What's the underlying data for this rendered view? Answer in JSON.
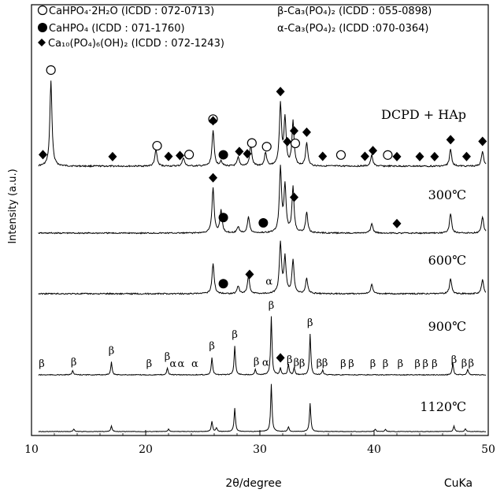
{
  "chart_data": {
    "type": "line",
    "xlabel": "2θ/degree",
    "ylabel": "Intensity (a.u.)",
    "radiation": "CuKa",
    "xlim": [
      10,
      50
    ],
    "xticks": [
      10,
      20,
      30,
      40,
      50
    ],
    "legend": [
      {
        "symbol": "open-circle",
        "text": "CaHPO₄·2H₂O (ICDD : 072-0713)"
      },
      {
        "symbol": "filled-circle",
        "text": "CaHPO₄  (ICDD : 071-1760)"
      },
      {
        "symbol": "filled-diamond",
        "text": "Ca₁₀(PO₄)₆(OH)₂ (ICDD : 072-1243)"
      },
      {
        "symbol": "none",
        "text": "β-Ca₃(PO₄)₂ (ICDD : 055-0898)"
      },
      {
        "symbol": "none",
        "text": "α-Ca₃(PO₄)₂ (ICDD :070-0364)"
      }
    ],
    "series": [
      {
        "name": "DCPD + HAp",
        "peaks": [
          {
            "x": 11.7,
            "h": 1.0
          },
          {
            "x": 20.9,
            "h": 0.2
          },
          {
            "x": 23.3,
            "h": 0.1
          },
          {
            "x": 25.9,
            "h": 0.42
          },
          {
            "x": 26.6,
            "h": 0.06
          },
          {
            "x": 28.1,
            "h": 0.1
          },
          {
            "x": 29.2,
            "h": 0.25
          },
          {
            "x": 30.5,
            "h": 0.16
          },
          {
            "x": 31.8,
            "h": 0.72
          },
          {
            "x": 32.2,
            "h": 0.55
          },
          {
            "x": 32.9,
            "h": 0.52
          },
          {
            "x": 34.1,
            "h": 0.28
          },
          {
            "x": 39.8,
            "h": 0.13
          },
          {
            "x": 46.7,
            "h": 0.2
          },
          {
            "x": 49.5,
            "h": 0.18
          }
        ],
        "markers": [
          {
            "x": 11.7,
            "m": "open-circle"
          },
          {
            "x": 21.0,
            "m": "open-circle"
          },
          {
            "x": 23.8,
            "m": "open-circle"
          },
          {
            "x": 25.9,
            "m": "open-circle"
          },
          {
            "x": 29.3,
            "m": "open-circle"
          },
          {
            "x": 30.6,
            "m": "open-circle"
          },
          {
            "x": 33.1,
            "m": "open-circle"
          },
          {
            "x": 37.1,
            "m": "open-circle"
          },
          {
            "x": 41.2,
            "m": "open-circle"
          },
          {
            "x": 26.8,
            "m": "filled-circle"
          },
          {
            "x": 11.0,
            "m": "filled-diamond"
          },
          {
            "x": 17.1,
            "m": "filled-diamond"
          },
          {
            "x": 22.0,
            "m": "filled-diamond"
          },
          {
            "x": 23.0,
            "m": "filled-diamond"
          },
          {
            "x": 25.9,
            "m": "filled-diamond"
          },
          {
            "x": 28.2,
            "m": "filled-diamond"
          },
          {
            "x": 28.9,
            "m": "filled-diamond"
          },
          {
            "x": 31.8,
            "m": "filled-diamond"
          },
          {
            "x": 32.4,
            "m": "filled-diamond"
          },
          {
            "x": 33.0,
            "m": "filled-diamond"
          },
          {
            "x": 34.1,
            "m": "filled-diamond"
          },
          {
            "x": 35.5,
            "m": "filled-diamond"
          },
          {
            "x": 39.2,
            "m": "filled-diamond"
          },
          {
            "x": 39.9,
            "m": "filled-diamond"
          },
          {
            "x": 42.0,
            "m": "filled-diamond"
          },
          {
            "x": 44.0,
            "m": "filled-diamond"
          },
          {
            "x": 45.3,
            "m": "filled-diamond"
          },
          {
            "x": 46.7,
            "m": "filled-diamond"
          },
          {
            "x": 48.1,
            "m": "filled-diamond"
          },
          {
            "x": 49.5,
            "m": "filled-diamond"
          }
        ]
      },
      {
        "name": "300℃",
        "peaks": [
          {
            "x": 25.9,
            "h": 0.7
          },
          {
            "x": 26.6,
            "h": 0.35
          },
          {
            "x": 28.1,
            "h": 0.1
          },
          {
            "x": 29.0,
            "h": 0.25
          },
          {
            "x": 31.8,
            "h": 1.0
          },
          {
            "x": 32.2,
            "h": 0.72
          },
          {
            "x": 32.9,
            "h": 0.7
          },
          {
            "x": 34.1,
            "h": 0.32
          },
          {
            "x": 39.8,
            "h": 0.15
          },
          {
            "x": 46.7,
            "h": 0.3
          },
          {
            "x": 49.5,
            "h": 0.25
          }
        ],
        "markers": [
          {
            "x": 25.9,
            "m": "filled-diamond"
          },
          {
            "x": 26.8,
            "m": "filled-circle"
          },
          {
            "x": 30.3,
            "m": "filled-circle"
          },
          {
            "x": 33.0,
            "m": "filled-diamond"
          },
          {
            "x": 42.0,
            "m": "filled-diamond"
          }
        ]
      },
      {
        "name": "600℃",
        "peaks": [
          {
            "x": 25.9,
            "h": 0.6
          },
          {
            "x": 28.1,
            "h": 0.15
          },
          {
            "x": 29.0,
            "h": 0.35
          },
          {
            "x": 31.8,
            "h": 1.0
          },
          {
            "x": 32.2,
            "h": 0.7
          },
          {
            "x": 32.9,
            "h": 0.65
          },
          {
            "x": 34.1,
            "h": 0.3
          },
          {
            "x": 39.8,
            "h": 0.18
          },
          {
            "x": 46.7,
            "h": 0.3
          },
          {
            "x": 49.5,
            "h": 0.28
          }
        ],
        "markers": [
          {
            "x": 26.8,
            "m": "filled-circle"
          },
          {
            "x": 29.1,
            "m": "filled-diamond"
          },
          {
            "x": 30.8,
            "m": "alpha"
          }
        ]
      },
      {
        "name": "900℃",
        "peaks": [
          {
            "x": 13.6,
            "h": 0.08
          },
          {
            "x": 17.0,
            "h": 0.22
          },
          {
            "x": 21.9,
            "h": 0.12
          },
          {
            "x": 25.8,
            "h": 0.3
          },
          {
            "x": 27.8,
            "h": 0.5
          },
          {
            "x": 29.6,
            "h": 0.1
          },
          {
            "x": 31.0,
            "h": 1.0
          },
          {
            "x": 31.8,
            "h": 0.12
          },
          {
            "x": 32.5,
            "h": 0.18
          },
          {
            "x": 33.0,
            "h": 0.12
          },
          {
            "x": 34.4,
            "h": 0.7
          },
          {
            "x": 35.5,
            "h": 0.08
          },
          {
            "x": 46.9,
            "h": 0.2
          },
          {
            "x": 48.2,
            "h": 0.1
          }
        ],
        "markers": [
          {
            "x": 10.9,
            "m": "beta"
          },
          {
            "x": 13.7,
            "m": "beta"
          },
          {
            "x": 17.0,
            "m": "beta"
          },
          {
            "x": 20.3,
            "m": "beta"
          },
          {
            "x": 21.9,
            "m": "beta"
          },
          {
            "x": 22.4,
            "m": "alpha"
          },
          {
            "x": 23.1,
            "m": "alpha"
          },
          {
            "x": 24.3,
            "m": "alpha"
          },
          {
            "x": 25.8,
            "m": "beta"
          },
          {
            "x": 27.8,
            "m": "beta"
          },
          {
            "x": 29.7,
            "m": "beta"
          },
          {
            "x": 30.5,
            "m": "alpha"
          },
          {
            "x": 31.0,
            "m": "beta"
          },
          {
            "x": 31.8,
            "m": "filled-diamond"
          },
          {
            "x": 32.6,
            "m": "beta"
          },
          {
            "x": 33.2,
            "m": "beta"
          },
          {
            "x": 33.7,
            "m": "beta"
          },
          {
            "x": 34.4,
            "m": "beta"
          },
          {
            "x": 35.2,
            "m": "beta"
          },
          {
            "x": 35.7,
            "m": "beta"
          },
          {
            "x": 37.3,
            "m": "beta"
          },
          {
            "x": 38.0,
            "m": "beta"
          },
          {
            "x": 39.9,
            "m": "beta"
          },
          {
            "x": 41.0,
            "m": "beta"
          },
          {
            "x": 42.3,
            "m": "beta"
          },
          {
            "x": 43.8,
            "m": "beta"
          },
          {
            "x": 44.5,
            "m": "beta"
          },
          {
            "x": 45.3,
            "m": "beta"
          },
          {
            "x": 47.0,
            "m": "beta"
          },
          {
            "x": 47.9,
            "m": "beta"
          },
          {
            "x": 48.5,
            "m": "beta"
          }
        ]
      },
      {
        "name": "1120℃",
        "peaks": [
          {
            "x": 13.7,
            "h": 0.05
          },
          {
            "x": 17.0,
            "h": 0.12
          },
          {
            "x": 22.0,
            "h": 0.05
          },
          {
            "x": 25.8,
            "h": 0.22
          },
          {
            "x": 26.2,
            "h": 0.08
          },
          {
            "x": 27.8,
            "h": 0.5
          },
          {
            "x": 31.0,
            "h": 1.0
          },
          {
            "x": 32.5,
            "h": 0.1
          },
          {
            "x": 34.4,
            "h": 0.6
          },
          {
            "x": 40.1,
            "h": 0.05
          },
          {
            "x": 41.0,
            "h": 0.05
          },
          {
            "x": 47.0,
            "h": 0.12
          },
          {
            "x": 48.0,
            "h": 0.06
          }
        ],
        "markers": []
      }
    ]
  }
}
